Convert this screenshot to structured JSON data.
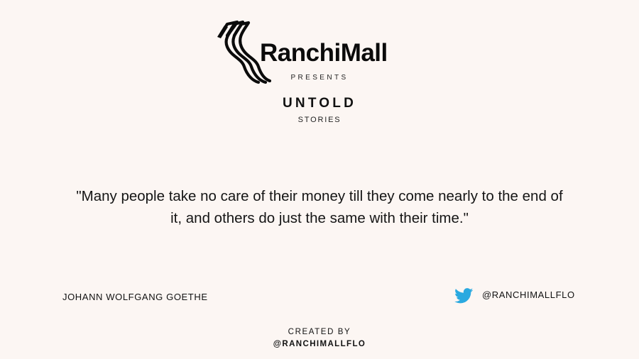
{
  "header": {
    "brand_name": "RanchiMall",
    "logo_icon": "ranchimall-logo-icon",
    "presents": "PRESENTS",
    "title": "UNTOLD",
    "subtitle": "STORIES"
  },
  "quote": {
    "text": "\"Many people take no care of their money till they come nearly to the end of it, and others do just the same with their time.\""
  },
  "footer": {
    "author": "JOHANN WOLFGANG GOETHE",
    "social": {
      "icon": "twitter-icon",
      "handle": "@RANCHIMALLFLO"
    },
    "created_by_label": "CREATED BY",
    "created_by_handle": "@RANCHIMALLFLO"
  },
  "colors": {
    "background": "#fcf6f3",
    "text": "#111111",
    "twitter_blue": "#2aa9e0"
  }
}
